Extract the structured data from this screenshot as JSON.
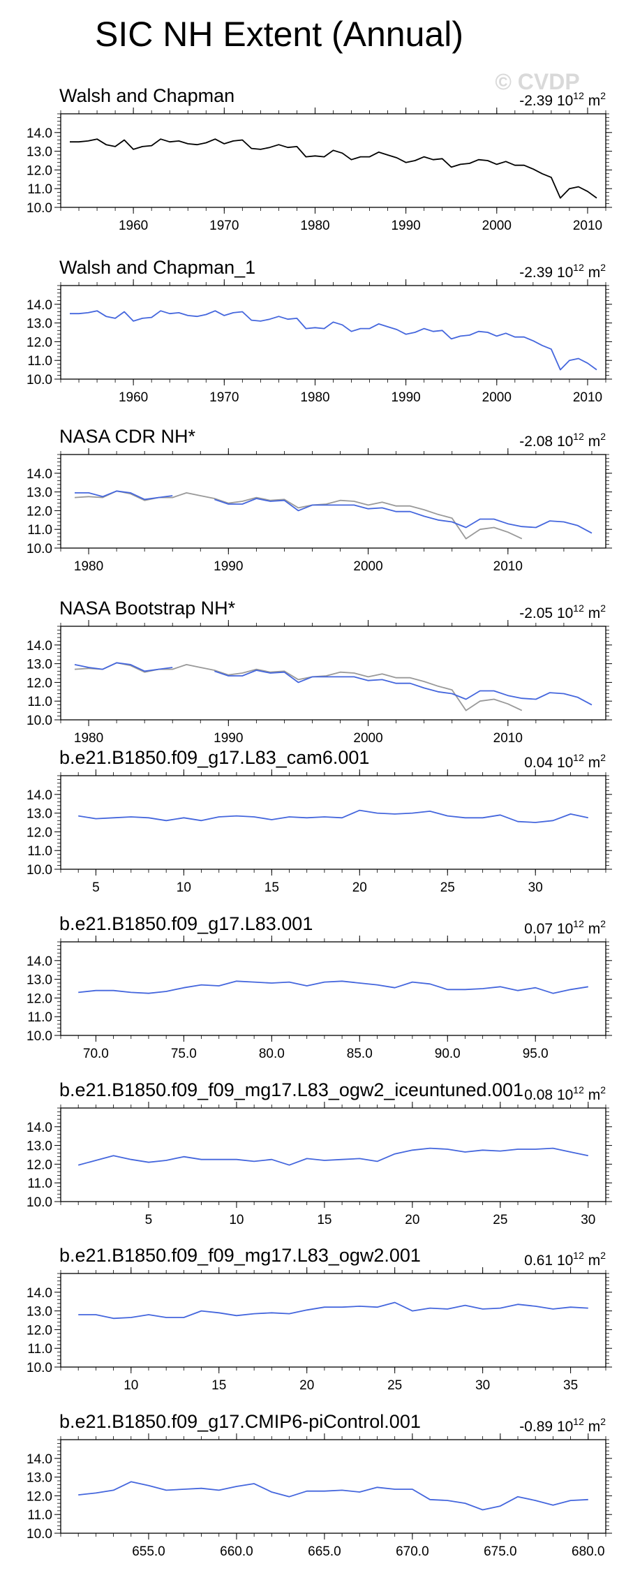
{
  "figure": {
    "title": "SIC NH Extent (Annual)",
    "watermark": "© CVDP"
  },
  "colors": {
    "obs": "#000000",
    "model": "#4466dd",
    "obs_ref": "#999999",
    "axis": "#000000"
  },
  "chart_data": [
    {
      "type": "line",
      "title": "Walsh and Chapman",
      "trend": {
        "value": "-2.39",
        "unit": "10",
        "exp": "12",
        "suffix": "m",
        "sup": "2"
      },
      "xlim": [
        1952,
        2012
      ],
      "ylim": [
        10,
        15
      ],
      "xticks": [
        1960,
        1970,
        1980,
        1990,
        2000,
        2010
      ],
      "xtick_labels": [
        "1960",
        "1970",
        "1980",
        "1990",
        "2000",
        "2010"
      ],
      "yticks": [
        10,
        11,
        12,
        13,
        14
      ],
      "ytick_labels": [
        "10.0",
        "11.0",
        "12.0",
        "13.0",
        "14.0"
      ],
      "series": [
        {
          "name": "Walsh and Chapman",
          "role": "obs",
          "x0": 1953,
          "values": [
            13.5,
            13.5,
            13.55,
            13.65,
            13.35,
            13.25,
            13.6,
            13.1,
            13.25,
            13.3,
            13.65,
            13.5,
            13.55,
            13.4,
            13.35,
            13.45,
            13.65,
            13.4,
            13.55,
            13.6,
            13.15,
            13.1,
            13.2,
            13.35,
            13.2,
            13.25,
            12.7,
            12.75,
            12.7,
            13.05,
            12.9,
            12.55,
            12.7,
            12.7,
            12.95,
            12.8,
            12.65,
            12.4,
            12.5,
            12.7,
            12.55,
            12.6,
            12.15,
            12.3,
            12.35,
            12.55,
            12.5,
            12.3,
            12.45,
            12.25,
            12.25,
            12.05,
            11.8,
            11.6,
            10.5,
            11.0,
            11.1,
            10.85,
            10.5
          ]
        }
      ]
    },
    {
      "type": "line",
      "title": "Walsh and Chapman_1",
      "trend": {
        "value": "-2.39",
        "unit": "10",
        "exp": "12",
        "suffix": "m",
        "sup": "2"
      },
      "xlim": [
        1952,
        2012
      ],
      "ylim": [
        10,
        15
      ],
      "xticks": [
        1960,
        1970,
        1980,
        1990,
        2000,
        2010
      ],
      "xtick_labels": [
        "1960",
        "1970",
        "1980",
        "1990",
        "2000",
        "2010"
      ],
      "yticks": [
        10,
        11,
        12,
        13,
        14
      ],
      "ytick_labels": [
        "10.0",
        "11.0",
        "12.0",
        "13.0",
        "14.0"
      ],
      "series": [
        {
          "name": "Walsh and Chapman_1",
          "role": "model",
          "x0": 1953,
          "values": [
            13.5,
            13.5,
            13.55,
            13.65,
            13.35,
            13.25,
            13.6,
            13.1,
            13.25,
            13.3,
            13.65,
            13.5,
            13.55,
            13.4,
            13.35,
            13.45,
            13.65,
            13.4,
            13.55,
            13.6,
            13.15,
            13.1,
            13.2,
            13.35,
            13.2,
            13.25,
            12.7,
            12.75,
            12.7,
            13.05,
            12.9,
            12.55,
            12.7,
            12.7,
            12.95,
            12.8,
            12.65,
            12.4,
            12.5,
            12.7,
            12.55,
            12.6,
            12.15,
            12.3,
            12.35,
            12.55,
            12.5,
            12.3,
            12.45,
            12.25,
            12.25,
            12.05,
            11.8,
            11.6,
            10.5,
            11.0,
            11.1,
            10.85,
            10.5
          ]
        }
      ]
    },
    {
      "type": "line",
      "title": "NASA CDR NH*",
      "trend": {
        "value": "-2.08",
        "unit": "10",
        "exp": "12",
        "suffix": "m",
        "sup": "2"
      },
      "xlim": [
        1978,
        2017
      ],
      "ylim": [
        10,
        15
      ],
      "xticks": [
        1980,
        1990,
        2000,
        2010
      ],
      "xtick_labels": [
        "1980",
        "1990",
        "2000",
        "2010"
      ],
      "yticks": [
        10,
        11,
        12,
        13,
        14
      ],
      "ytick_labels": [
        "10.0",
        "11.0",
        "12.0",
        "13.0",
        "14.0"
      ],
      "series": [
        {
          "name": "Walsh and Chapman",
          "role": "obs_ref",
          "x0": 1979,
          "values": [
            12.7,
            12.75,
            12.7,
            13.05,
            12.9,
            12.55,
            12.7,
            12.7,
            12.95,
            12.8,
            12.65,
            12.4,
            12.5,
            12.7,
            12.55,
            12.6,
            12.15,
            12.3,
            12.35,
            12.55,
            12.5,
            12.3,
            12.45,
            12.25,
            12.25,
            12.05,
            11.8,
            11.6,
            10.5,
            11.0,
            11.1,
            10.85,
            10.5
          ]
        },
        {
          "name": "NASA CDR NH*",
          "role": "model",
          "x0": 1979,
          "values": [
            12.95,
            12.95,
            12.75,
            13.05,
            12.95,
            12.6,
            12.7,
            12.8,
            null,
            null,
            12.6,
            12.35,
            12.35,
            12.65,
            12.5,
            12.55,
            12.0,
            12.3,
            12.3,
            12.3,
            12.3,
            12.1,
            12.15,
            11.95,
            11.95,
            11.7,
            11.5,
            11.4,
            11.1,
            11.55,
            11.55,
            11.3,
            11.15,
            11.1,
            11.45,
            11.4,
            11.2,
            10.8
          ]
        }
      ]
    },
    {
      "type": "line",
      "title": "NASA Bootstrap NH*",
      "trend": {
        "value": "-2.05",
        "unit": "10",
        "exp": "12",
        "suffix": "m",
        "sup": "2"
      },
      "xlim": [
        1978,
        2017
      ],
      "ylim": [
        10,
        15
      ],
      "xticks": [
        1980,
        1990,
        2000,
        2010
      ],
      "xtick_labels": [
        "1980",
        "1990",
        "2000",
        "2010"
      ],
      "yticks": [
        10,
        11,
        12,
        13,
        14
      ],
      "ytick_labels": [
        "10.0",
        "11.0",
        "12.0",
        "13.0",
        "14.0"
      ],
      "series": [
        {
          "name": "Walsh and Chapman",
          "role": "obs_ref",
          "x0": 1979,
          "values": [
            12.7,
            12.75,
            12.7,
            13.05,
            12.9,
            12.55,
            12.7,
            12.7,
            12.95,
            12.8,
            12.65,
            12.4,
            12.5,
            12.7,
            12.55,
            12.6,
            12.15,
            12.3,
            12.35,
            12.55,
            12.5,
            12.3,
            12.45,
            12.25,
            12.25,
            12.05,
            11.8,
            11.6,
            10.5,
            11.0,
            11.1,
            10.85,
            10.5
          ]
        },
        {
          "name": "NASA Bootstrap NH*",
          "role": "model",
          "x0": 1979,
          "values": [
            12.95,
            12.8,
            12.7,
            13.05,
            12.95,
            12.6,
            12.7,
            12.8,
            null,
            null,
            12.6,
            12.35,
            12.35,
            12.65,
            12.5,
            12.55,
            12.0,
            12.3,
            12.3,
            12.3,
            12.3,
            12.1,
            12.15,
            11.95,
            11.95,
            11.7,
            11.5,
            11.4,
            11.1,
            11.55,
            11.55,
            11.3,
            11.15,
            11.1,
            11.45,
            11.4,
            11.2,
            10.8
          ]
        }
      ]
    },
    {
      "type": "line",
      "title": "b.e21.B1850.f09_g17.L83_cam6.001",
      "trend": {
        "value": "0.04",
        "unit": "10",
        "exp": "12",
        "suffix": "m",
        "sup": "2"
      },
      "xlim": [
        3,
        34
      ],
      "ylim": [
        10,
        15
      ],
      "xticks": [
        5,
        10,
        15,
        20,
        25,
        30
      ],
      "xtick_labels": [
        "5",
        "10",
        "15",
        "20",
        "25",
        "30"
      ],
      "yticks": [
        10,
        11,
        12,
        13,
        14
      ],
      "ytick_labels": [
        "10.0",
        "11.0",
        "12.0",
        "13.0",
        "14.0"
      ],
      "series": [
        {
          "name": "b.e21.B1850.f09_g17.L83_cam6.001",
          "role": "model",
          "x0": 4,
          "values": [
            12.85,
            12.7,
            12.75,
            12.8,
            12.75,
            12.6,
            12.75,
            12.6,
            12.8,
            12.85,
            12.8,
            12.65,
            12.8,
            12.75,
            12.8,
            12.75,
            13.15,
            13.0,
            12.95,
            13.0,
            13.1,
            12.85,
            12.75,
            12.75,
            12.9,
            12.55,
            12.5,
            12.6,
            12.95,
            12.75
          ]
        }
      ]
    },
    {
      "type": "line",
      "title": "b.e21.B1850.f09_g17.L83.001",
      "trend": {
        "value": "0.07",
        "unit": "10",
        "exp": "12",
        "suffix": "m",
        "sup": "2"
      },
      "xlim": [
        68,
        99
      ],
      "ylim": [
        10,
        15
      ],
      "xticks": [
        70,
        75,
        80,
        85,
        90,
        95
      ],
      "xtick_labels": [
        "70.0",
        "75.0",
        "80.0",
        "85.0",
        "90.0",
        "95.0"
      ],
      "yticks": [
        10,
        11,
        12,
        13,
        14
      ],
      "ytick_labels": [
        "10.0",
        "11.0",
        "12.0",
        "13.0",
        "14.0"
      ],
      "series": [
        {
          "name": "b.e21.B1850.f09_g17.L83.001",
          "role": "model",
          "x0": 69,
          "values": [
            12.3,
            12.4,
            12.4,
            12.3,
            12.25,
            12.35,
            12.55,
            12.7,
            12.65,
            12.9,
            12.85,
            12.8,
            12.85,
            12.65,
            12.85,
            12.9,
            12.8,
            12.7,
            12.55,
            12.85,
            12.75,
            12.45,
            12.45,
            12.5,
            12.6,
            12.4,
            12.55,
            12.25,
            12.45,
            12.6
          ]
        }
      ]
    },
    {
      "type": "line",
      "title": "b.e21.B1850.f09_f09_mg17.L83_ogw2_iceuntuned.001",
      "trend": {
        "value": "0.08",
        "unit": "10",
        "exp": "12",
        "suffix": "m",
        "sup": "2"
      },
      "xlim": [
        0,
        31
      ],
      "ylim": [
        10,
        15
      ],
      "xticks": [
        5,
        10,
        15,
        20,
        25,
        30
      ],
      "xtick_labels": [
        "5",
        "10",
        "15",
        "20",
        "25",
        "30"
      ],
      "yticks": [
        10,
        11,
        12,
        13,
        14
      ],
      "ytick_labels": [
        "10.0",
        "11.0",
        "12.0",
        "13.0",
        "14.0"
      ],
      "series": [
        {
          "name": "b.e21.B1850.f09_f09_mg17.L83_ogw2_iceuntuned.001",
          "role": "model",
          "x0": 1,
          "values": [
            11.95,
            12.2,
            12.45,
            12.25,
            12.1,
            12.2,
            12.4,
            12.25,
            12.25,
            12.25,
            12.15,
            12.25,
            11.95,
            12.3,
            12.2,
            12.25,
            12.3,
            12.15,
            12.55,
            12.75,
            12.85,
            12.8,
            12.65,
            12.75,
            12.7,
            12.8,
            12.8,
            12.85,
            12.65,
            12.45
          ]
        }
      ]
    },
    {
      "type": "line",
      "title": "b.e21.B1850.f09_f09_mg17.L83_ogw2.001",
      "trend": {
        "value": "0.61",
        "unit": "10",
        "exp": "12",
        "suffix": "m",
        "sup": "2"
      },
      "xlim": [
        6,
        37
      ],
      "ylim": [
        10,
        15
      ],
      "xticks": [
        10,
        15,
        20,
        25,
        30,
        35
      ],
      "xtick_labels": [
        "10",
        "15",
        "20",
        "25",
        "30",
        "35"
      ],
      "yticks": [
        10,
        11,
        12,
        13,
        14
      ],
      "ytick_labels": [
        "10.0",
        "11.0",
        "12.0",
        "13.0",
        "14.0"
      ],
      "series": [
        {
          "name": "b.e21.B1850.f09_f09_mg17.L83_ogw2.001",
          "role": "model",
          "x0": 7,
          "values": [
            12.8,
            12.8,
            12.6,
            12.65,
            12.8,
            12.65,
            12.65,
            13.0,
            12.9,
            12.75,
            12.85,
            12.9,
            12.85,
            13.05,
            13.2,
            13.2,
            13.25,
            13.2,
            13.45,
            13.0,
            13.15,
            13.1,
            13.3,
            13.1,
            13.15,
            13.35,
            13.25,
            13.1,
            13.2,
            13.15
          ]
        }
      ]
    },
    {
      "type": "line",
      "title": "b.e21.B1850.f09_g17.CMIP6-piControl.001",
      "trend": {
        "value": "-0.89",
        "unit": "10",
        "exp": "12",
        "suffix": "m",
        "sup": "2"
      },
      "xlim": [
        650,
        681
      ],
      "ylim": [
        10,
        15
      ],
      "xticks": [
        655,
        660,
        665,
        670,
        675,
        680
      ],
      "xtick_labels": [
        "655.0",
        "660.0",
        "665.0",
        "670.0",
        "675.0",
        "680.0"
      ],
      "yticks": [
        10,
        11,
        12,
        13,
        14
      ],
      "ytick_labels": [
        "10.0",
        "11.0",
        "12.0",
        "13.0",
        "14.0"
      ],
      "series": [
        {
          "name": "b.e21.B1850.f09_g17.CMIP6-piControl.001",
          "role": "model",
          "x0": 651,
          "values": [
            12.05,
            12.15,
            12.3,
            12.75,
            12.55,
            12.3,
            12.35,
            12.4,
            12.3,
            12.5,
            12.65,
            12.2,
            11.95,
            12.25,
            12.25,
            12.3,
            12.2,
            12.45,
            12.35,
            12.35,
            11.8,
            11.75,
            11.6,
            11.25,
            11.45,
            11.95,
            11.75,
            11.5,
            11.75,
            11.8
          ]
        }
      ]
    }
  ]
}
